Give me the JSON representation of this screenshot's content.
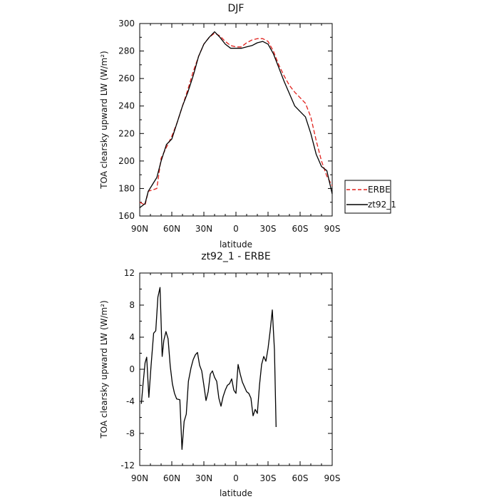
{
  "chart_data": [
    {
      "type": "line",
      "title": "DJF",
      "xlabel": "latitude",
      "ylabel": "TOA clearsky upward LW (W/m²)",
      "xlim": [
        90,
        -90
      ],
      "ylim": [
        160,
        300
      ],
      "x_ticks": [
        {
          "value": 90,
          "label": "90N"
        },
        {
          "value": 60,
          "label": "60N"
        },
        {
          "value": 30,
          "label": "30N"
        },
        {
          "value": 0,
          "label": "0"
        },
        {
          "value": -30,
          "label": "30S"
        },
        {
          "value": -60,
          "label": "60S"
        },
        {
          "value": -90,
          "label": "90S"
        }
      ],
      "y_ticks": [
        160,
        180,
        200,
        220,
        240,
        260,
        280,
        300
      ],
      "legend_position": "right",
      "series": [
        {
          "name": "ERBE",
          "color": "#e0201b",
          "dash": "dashed",
          "points": [
            [
              90,
              170
            ],
            [
              85,
              168
            ],
            [
              82,
              178
            ],
            [
              78,
              179
            ],
            [
              74,
              180
            ],
            [
              70,
              202
            ],
            [
              65,
              210
            ],
            [
              60,
              218
            ],
            [
              55,
              228
            ],
            [
              50,
              240
            ],
            [
              45,
              252
            ],
            [
              40,
              265
            ],
            [
              35,
              276
            ],
            [
              30,
              285
            ],
            [
              25,
              290
            ],
            [
              20,
              293
            ],
            [
              15,
              291
            ],
            [
              10,
              287
            ],
            [
              5,
              284
            ],
            [
              0,
              283
            ],
            [
              -5,
              283
            ],
            [
              -10,
              286
            ],
            [
              -15,
              288
            ],
            [
              -20,
              289
            ],
            [
              -25,
              289
            ],
            [
              -30,
              287
            ],
            [
              -35,
              280
            ],
            [
              -40,
              270
            ],
            [
              -45,
              262
            ],
            [
              -50,
              255
            ],
            [
              -55,
              250
            ],
            [
              -60,
              246
            ],
            [
              -65,
              242
            ],
            [
              -70,
              232
            ],
            [
              -75,
              215
            ],
            [
              -80,
              200
            ],
            [
              -85,
              189
            ],
            [
              -90,
              182
            ]
          ]
        },
        {
          "name": "zt92_1",
          "color": "#000000",
          "dash": "solid",
          "points": [
            [
              90,
              166
            ],
            [
              85,
              169
            ],
            [
              82,
              178
            ],
            [
              78,
              183
            ],
            [
              74,
              188
            ],
            [
              70,
              200
            ],
            [
              65,
              212
            ],
            [
              60,
              216
            ],
            [
              55,
              228
            ],
            [
              50,
              240
            ],
            [
              45,
              250
            ],
            [
              40,
              262
            ],
            [
              35,
              276
            ],
            [
              30,
              285
            ],
            [
              25,
              290
            ],
            [
              20,
              294
            ],
            [
              15,
              290
            ],
            [
              10,
              285
            ],
            [
              5,
              282
            ],
            [
              0,
              282
            ],
            [
              -5,
              282
            ],
            [
              -10,
              283
            ],
            [
              -15,
              284
            ],
            [
              -20,
              286
            ],
            [
              -25,
              287
            ],
            [
              -30,
              285
            ],
            [
              -35,
              278
            ],
            [
              -40,
              268
            ],
            [
              -45,
              258
            ],
            [
              -50,
              249
            ],
            [
              -55,
              240
            ],
            [
              -60,
              236
            ],
            [
              -65,
              232
            ],
            [
              -70,
              220
            ],
            [
              -75,
              205
            ],
            [
              -80,
              196
            ],
            [
              -85,
              193
            ],
            [
              -90,
              176
            ]
          ]
        }
      ]
    },
    {
      "type": "line",
      "title": "zt92_1 - ERBE",
      "xlabel": "latitude",
      "ylabel": "TOA clearsky upward LW (W/m²)",
      "xlim": [
        90,
        -90
      ],
      "ylim": [
        -12,
        12
      ],
      "x_ticks": [
        {
          "value": 90,
          "label": "90N"
        },
        {
          "value": 60,
          "label": "60N"
        },
        {
          "value": 30,
          "label": "30N"
        },
        {
          "value": 0,
          "label": "0"
        },
        {
          "value": -30,
          "label": "30S"
        },
        {
          "value": -60,
          "label": "60S"
        },
        {
          "value": -90,
          "label": "90S"
        }
      ],
      "y_ticks": [
        -12,
        -8,
        -4,
        0,
        4,
        8,
        12
      ],
      "series": [
        {
          "color": "#000000",
          "dash": "solid",
          "points": [
            [
              88.5,
              -4.3
            ],
            [
              87,
              -2.0
            ],
            [
              85,
              0.8
            ],
            [
              83.5,
              1.5
            ],
            [
              81.5,
              -3.5
            ],
            [
              79.5,
              0.3
            ],
            [
              77,
              4.5
            ],
            [
              75,
              4.8
            ],
            [
              73,
              9.0
            ],
            [
              71,
              10.2
            ],
            [
              69,
              1.6
            ],
            [
              67.5,
              3.6
            ],
            [
              65.5,
              4.7
            ],
            [
              63.5,
              3.8
            ],
            [
              61.5,
              0.4
            ],
            [
              59.5,
              -1.8
            ],
            [
              57.5,
              -3.0
            ],
            [
              55.5,
              -3.7
            ],
            [
              52.5,
              -3.8
            ],
            [
              50.5,
              -10.0
            ],
            [
              48.5,
              -6.5
            ],
            [
              46.5,
              -5.6
            ],
            [
              44.5,
              -1.5
            ],
            [
              42,
              0.2
            ],
            [
              40,
              1.2
            ],
            [
              38,
              1.8
            ],
            [
              36,
              2.1
            ],
            [
              34,
              0.5
            ],
            [
              32,
              -0.2
            ],
            [
              30,
              -2.0
            ],
            [
              28,
              -3.9
            ],
            [
              26,
              -2.8
            ],
            [
              24,
              -0.6
            ],
            [
              22,
              -0.2
            ],
            [
              20,
              -1.0
            ],
            [
              18,
              -1.5
            ],
            [
              16,
              -3.6
            ],
            [
              14,
              -4.6
            ],
            [
              12,
              -3.4
            ],
            [
              10,
              -2.6
            ],
            [
              8,
              -2.0
            ],
            [
              6,
              -1.8
            ],
            [
              4,
              -1.2
            ],
            [
              2,
              -2.6
            ],
            [
              0,
              -3.0
            ],
            [
              -2,
              0.6
            ],
            [
              -4,
              -0.6
            ],
            [
              -6,
              -1.6
            ],
            [
              -8,
              -2.2
            ],
            [
              -10,
              -2.8
            ],
            [
              -12,
              -3.0
            ],
            [
              -14,
              -3.6
            ],
            [
              -16,
              -5.8
            ],
            [
              -18,
              -5.0
            ],
            [
              -20,
              -5.5
            ],
            [
              -22,
              -2.0
            ],
            [
              -24,
              0.6
            ],
            [
              -26,
              1.6
            ],
            [
              -28,
              1.0
            ],
            [
              -30,
              2.6
            ],
            [
              -32,
              4.8
            ],
            [
              -34,
              7.4
            ],
            [
              -36,
              2.4
            ],
            [
              -37.5,
              -7.2
            ]
          ]
        }
      ]
    }
  ]
}
